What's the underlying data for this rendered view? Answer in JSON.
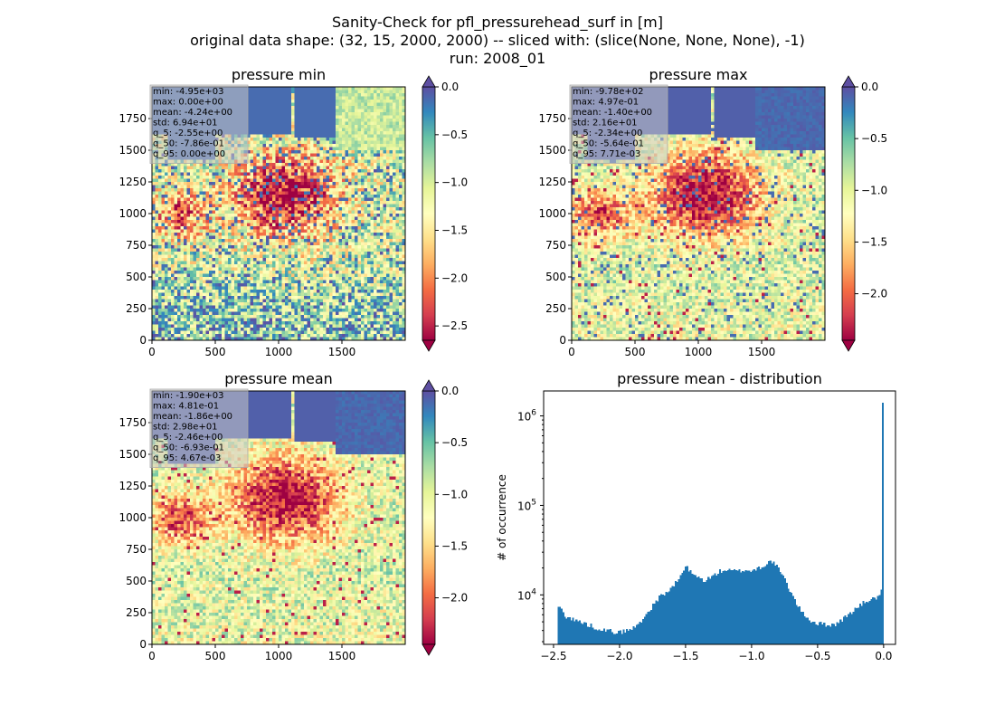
{
  "figure": {
    "title_lines": [
      "Sanity-Check for pfl_pressurehead_surf in [m]",
      "original data shape: (32, 15, 2000, 2000) -- sliced with: (slice(None, None, None), -1)",
      "run: 2008_01"
    ]
  },
  "colors": {
    "histogram_bar": "#1f77b4",
    "spectral": [
      "#9e0142",
      "#d53e4f",
      "#f46d43",
      "#fdae61",
      "#fee08b",
      "#ffffbf",
      "#e6f598",
      "#abdda4",
      "#66c2a5",
      "#3288bd",
      "#5e4fa2"
    ]
  },
  "chart_data": [
    {
      "type": "heatmap",
      "title": "pressure min",
      "xlim": [
        0,
        2000
      ],
      "ylim": [
        0,
        2000
      ],
      "xticks": [
        "0",
        "500",
        "1000",
        "1500"
      ],
      "yticks": [
        "0",
        "250",
        "500",
        "750",
        "1000",
        "1250",
        "1500",
        "1750"
      ],
      "colorbar": {
        "vmin": -2.65,
        "vmax": 0.0,
        "ticks": [
          "0.0",
          "−0.5",
          "−1.0",
          "−1.5",
          "−2.0",
          "−2.5"
        ],
        "extend": "both"
      },
      "stats": [
        "min: -4.95e+03",
        "max: 0.00e+00",
        "mean: -4.24e+00",
        "std: 6.94e+01",
        "q_5: -2.55e+00",
        "q_50: -7.86e-01",
        "q_95: 0.00e+00"
      ]
    },
    {
      "type": "heatmap",
      "title": "pressure max",
      "xlim": [
        0,
        2000
      ],
      "ylim": [
        0,
        2000
      ],
      "xticks": [
        "0",
        "500",
        "1000",
        "1500"
      ],
      "yticks": [
        "0",
        "250",
        "500",
        "750",
        "1000",
        "1250",
        "1500",
        "1750"
      ],
      "colorbar": {
        "vmin": -2.45,
        "vmax": 0.0,
        "ticks": [
          "0.0",
          "−0.5",
          "−1.0",
          "−1.5",
          "−2.0"
        ],
        "extend": "both"
      },
      "stats": [
        "min: -9.78e+02",
        "max: 4.97e-01",
        "mean: -1.40e+00",
        "std: 2.16e+01",
        "q_5: -2.34e+00",
        "q_50: -5.64e-01",
        "q_95: 7.71e-03"
      ]
    },
    {
      "type": "heatmap",
      "title": "pressure mean",
      "xlim": [
        0,
        2000
      ],
      "ylim": [
        0,
        2000
      ],
      "xticks": [
        "0",
        "500",
        "1000",
        "1500"
      ],
      "yticks": [
        "0",
        "250",
        "500",
        "750",
        "1000",
        "1250",
        "1500",
        "1750"
      ],
      "colorbar": {
        "vmin": -2.45,
        "vmax": 0.0,
        "ticks": [
          "0.0",
          "−0.5",
          "−1.0",
          "−1.5",
          "−2.0"
        ],
        "extend": "both"
      },
      "stats": [
        "min: -1.90e+03",
        "max: 4.81e-01",
        "mean: -1.86e+00",
        "std: 2.98e+01",
        "q_5: -2.46e+00",
        "q_50: -6.93e-01",
        "q_95: 4.67e-03"
      ]
    },
    {
      "type": "bar",
      "title": "pressure mean - distribution",
      "ylabel": "# of occurrence",
      "yscale": "log",
      "xlim": [
        -2.575,
        0.09
      ],
      "ylim": [
        2800,
        1900000
      ],
      "xticks": [
        {
          "value": -2.5,
          "label": "−2.5"
        },
        {
          "value": -2.0,
          "label": "−2.0"
        },
        {
          "value": -1.5,
          "label": "−1.5"
        },
        {
          "value": -1.0,
          "label": "−1.0"
        },
        {
          "value": -0.5,
          "label": "−0.5"
        },
        {
          "value": 0.0,
          "label": "0.0"
        }
      ],
      "yticks": [
        {
          "value": 10000,
          "base": "10",
          "exp": "4"
        },
        {
          "value": 100000,
          "base": "10",
          "exp": "5"
        },
        {
          "value": 1000000,
          "base": "10",
          "exp": "6"
        }
      ],
      "bin_range": [
        -2.47,
        0.0
      ],
      "bins": 200,
      "profile": [
        [
          -2.47,
          7000
        ],
        [
          -2.45,
          7400
        ],
        [
          -2.43,
          6400
        ],
        [
          -2.4,
          5700
        ],
        [
          -2.35,
          5300
        ],
        [
          -2.3,
          5000
        ],
        [
          -2.25,
          4700
        ],
        [
          -2.2,
          4400
        ],
        [
          -2.15,
          4200
        ],
        [
          -2.1,
          4000
        ],
        [
          -2.05,
          3900
        ],
        [
          -2.0,
          3800
        ],
        [
          -1.95,
          4000
        ],
        [
          -1.9,
          4200
        ],
        [
          -1.85,
          4800
        ],
        [
          -1.8,
          6000
        ],
        [
          -1.75,
          7500
        ],
        [
          -1.7,
          9500
        ],
        [
          -1.65,
          10500
        ],
        [
          -1.6,
          12000
        ],
        [
          -1.55,
          15000
        ],
        [
          -1.5,
          21000
        ],
        [
          -1.45,
          17000
        ],
        [
          -1.4,
          15500
        ],
        [
          -1.35,
          14500
        ],
        [
          -1.3,
          16000
        ],
        [
          -1.25,
          18000
        ],
        [
          -1.2,
          19000
        ],
        [
          -1.15,
          18500
        ],
        [
          -1.1,
          18500
        ],
        [
          -1.05,
          19000
        ],
        [
          -1.0,
          18500
        ],
        [
          -0.95,
          20000
        ],
        [
          -0.9,
          21500
        ],
        [
          -0.85,
          24000
        ],
        [
          -0.8,
          20000
        ],
        [
          -0.75,
          15000
        ],
        [
          -0.7,
          10500
        ],
        [
          -0.65,
          7500
        ],
        [
          -0.6,
          6000
        ],
        [
          -0.55,
          5100
        ],
        [
          -0.5,
          4800
        ],
        [
          -0.45,
          4700
        ],
        [
          -0.4,
          4600
        ],
        [
          -0.35,
          4800
        ],
        [
          -0.3,
          5500
        ],
        [
          -0.25,
          6300
        ],
        [
          -0.2,
          7200
        ],
        [
          -0.15,
          8200
        ],
        [
          -0.1,
          8800
        ],
        [
          -0.05,
          9300
        ],
        [
          -0.02,
          10500
        ],
        [
          -0.01,
          14000
        ],
        [
          0.0,
          1400000
        ]
      ]
    }
  ]
}
